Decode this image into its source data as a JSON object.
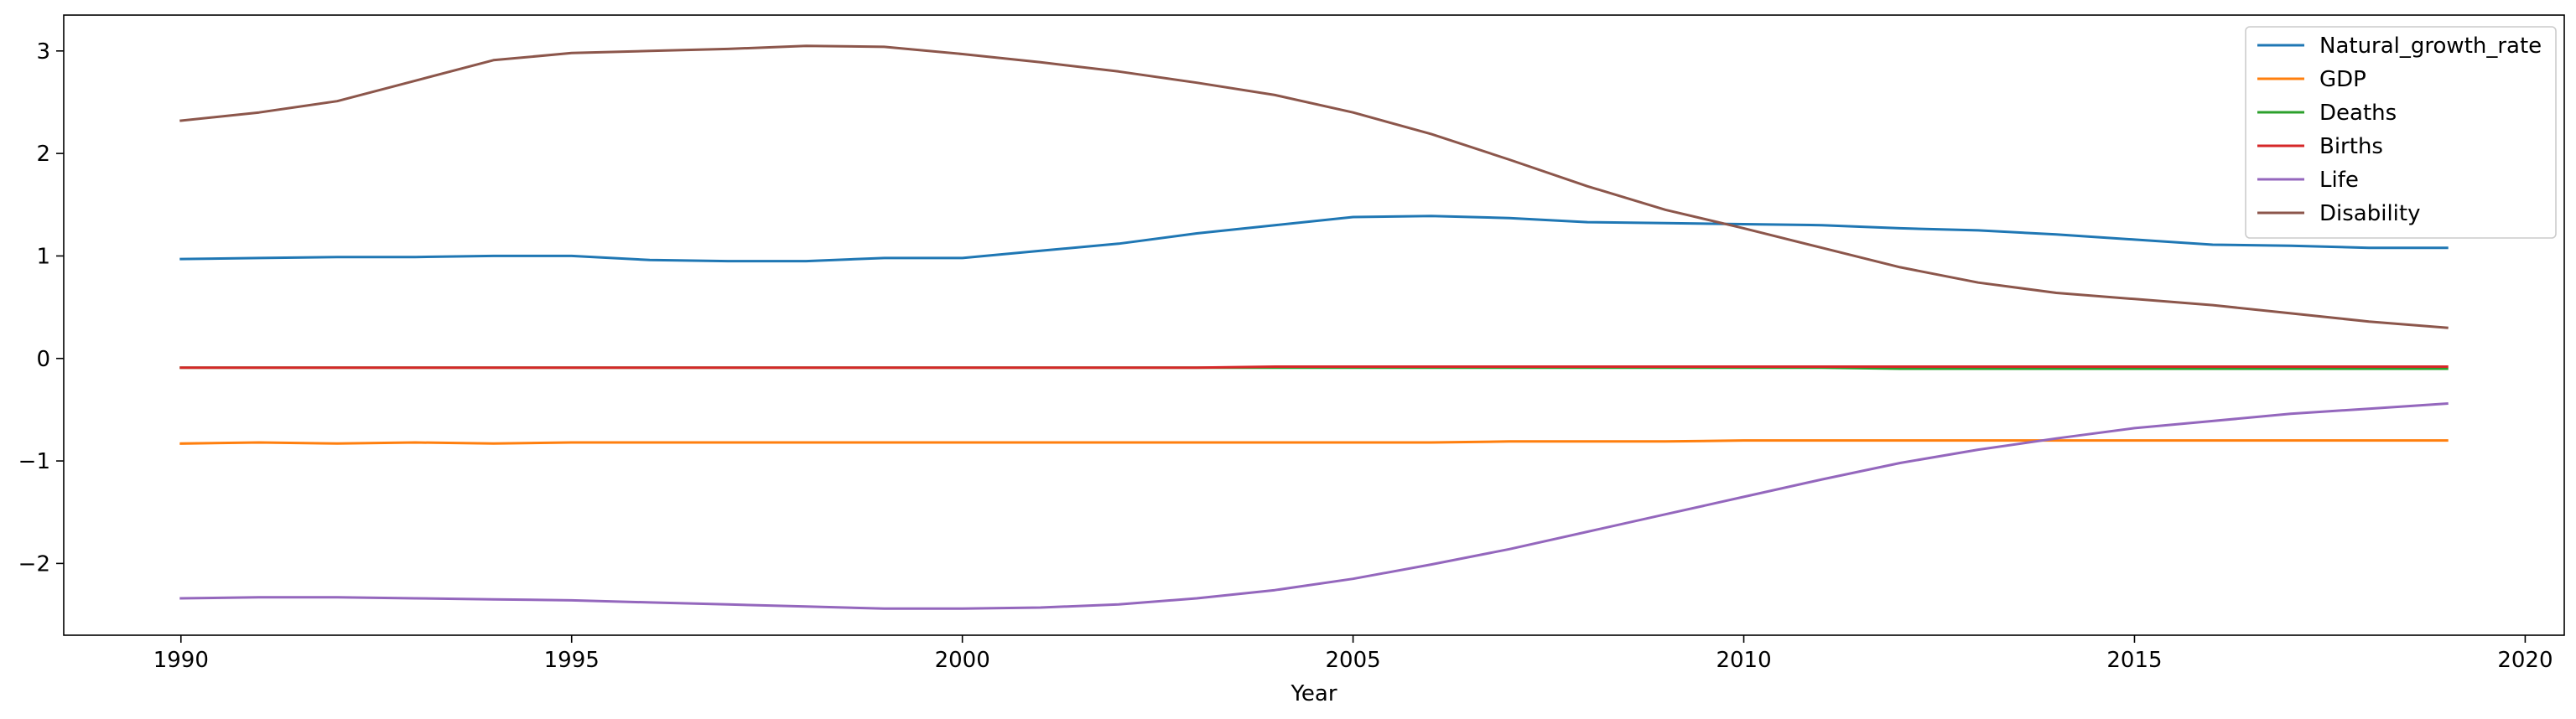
{
  "chart_data": {
    "type": "line",
    "xlabel": "Year",
    "ylabel": "",
    "xlim": [
      1988.5,
      2020.5
    ],
    "ylim": [
      -2.7,
      3.35
    ],
    "xticks": [
      1990,
      1995,
      2000,
      2005,
      2010,
      2015,
      2020
    ],
    "yticks": [
      -2,
      -1,
      0,
      1,
      2,
      3
    ],
    "legend_position": "top-right",
    "grid": false,
    "x": [
      1990,
      1991,
      1992,
      1993,
      1994,
      1995,
      1996,
      1997,
      1998,
      1999,
      2000,
      2001,
      2002,
      2003,
      2004,
      2005,
      2006,
      2007,
      2008,
      2009,
      2010,
      2011,
      2012,
      2013,
      2014,
      2015,
      2016,
      2017,
      2018,
      2019
    ],
    "series": [
      {
        "name": "Natural_growth_rate",
        "color": "#1f77b4",
        "values": [
          0.97,
          0.98,
          0.99,
          0.99,
          1.0,
          1.0,
          0.96,
          0.95,
          0.95,
          0.98,
          0.98,
          1.05,
          1.12,
          1.22,
          1.3,
          1.38,
          1.39,
          1.37,
          1.33,
          1.32,
          1.31,
          1.3,
          1.27,
          1.25,
          1.21,
          1.16,
          1.11,
          1.1,
          1.08,
          1.08
        ]
      },
      {
        "name": "GDP",
        "color": "#ff7f0e",
        "values": [
          -0.83,
          -0.82,
          -0.83,
          -0.82,
          -0.83,
          -0.82,
          -0.82,
          -0.82,
          -0.82,
          -0.82,
          -0.82,
          -0.82,
          -0.82,
          -0.82,
          -0.82,
          -0.82,
          -0.82,
          -0.81,
          -0.81,
          -0.81,
          -0.8,
          -0.8,
          -0.8,
          -0.8,
          -0.8,
          -0.8,
          -0.8,
          -0.8,
          -0.8,
          -0.8
        ]
      },
      {
        "name": "Deaths",
        "color": "#2ca02c",
        "values": [
          -0.09,
          -0.09,
          -0.09,
          -0.09,
          -0.09,
          -0.09,
          -0.09,
          -0.09,
          -0.09,
          -0.09,
          -0.09,
          -0.09,
          -0.09,
          -0.09,
          -0.09,
          -0.09,
          -0.09,
          -0.09,
          -0.09,
          -0.09,
          -0.09,
          -0.09,
          -0.1,
          -0.1,
          -0.1,
          -0.1,
          -0.1,
          -0.1,
          -0.1,
          -0.1
        ]
      },
      {
        "name": "Births",
        "color": "#d62728",
        "values": [
          -0.09,
          -0.09,
          -0.09,
          -0.09,
          -0.09,
          -0.09,
          -0.09,
          -0.09,
          -0.09,
          -0.09,
          -0.09,
          -0.09,
          -0.09,
          -0.09,
          -0.08,
          -0.08,
          -0.08,
          -0.08,
          -0.08,
          -0.08,
          -0.08,
          -0.08,
          -0.08,
          -0.08,
          -0.08,
          -0.08,
          -0.08,
          -0.08,
          -0.08,
          -0.08
        ]
      },
      {
        "name": "Life",
        "color": "#9467bd",
        "values": [
          -2.34,
          -2.33,
          -2.33,
          -2.34,
          -2.35,
          -2.36,
          -2.38,
          -2.4,
          -2.42,
          -2.44,
          -2.44,
          -2.43,
          -2.4,
          -2.34,
          -2.26,
          -2.15,
          -2.01,
          -1.86,
          -1.69,
          -1.52,
          -1.35,
          -1.18,
          -1.02,
          -0.89,
          -0.78,
          -0.68,
          -0.61,
          -0.54,
          -0.49,
          -0.44
        ]
      },
      {
        "name": "Disability",
        "color": "#8c564b",
        "values": [
          2.32,
          2.4,
          2.51,
          2.71,
          2.91,
          2.98,
          3.0,
          3.02,
          3.05,
          3.04,
          2.97,
          2.89,
          2.8,
          2.69,
          2.57,
          2.4,
          2.19,
          1.94,
          1.68,
          1.45,
          1.27,
          1.08,
          0.89,
          0.74,
          0.64,
          0.58,
          0.52,
          0.44,
          0.36,
          0.3
        ]
      }
    ]
  }
}
